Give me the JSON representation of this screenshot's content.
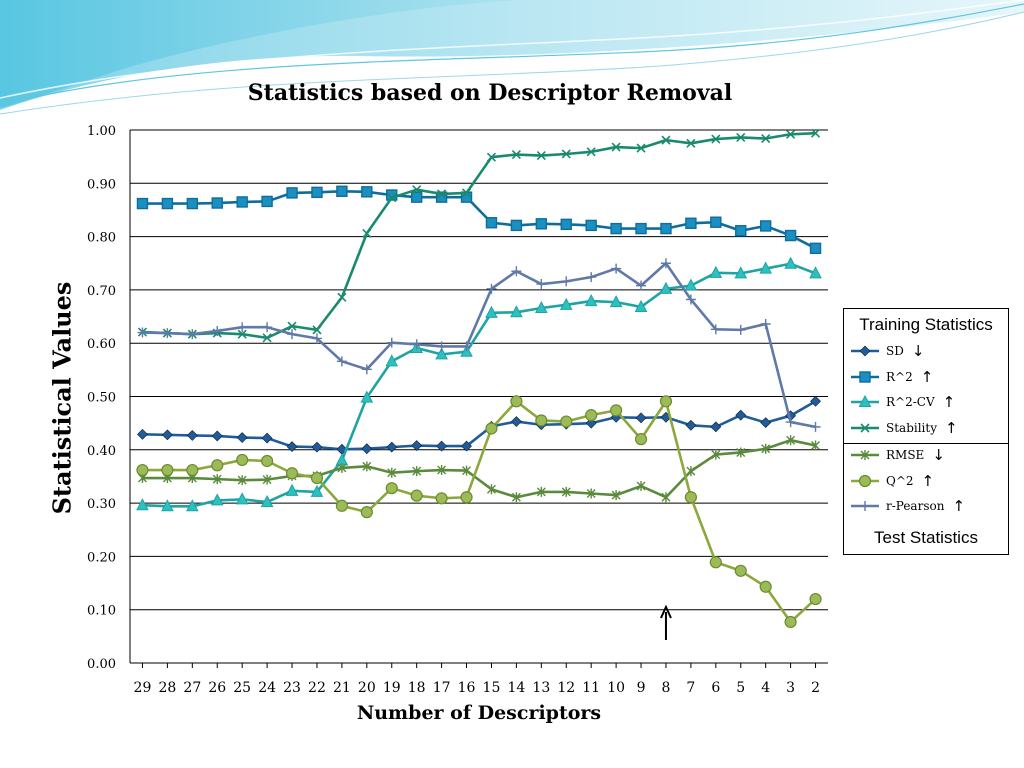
{
  "chart_data": {
    "type": "line",
    "title": "Statistics based on Descriptor Removal",
    "xlabel": "Number of Descriptors",
    "ylabel": "Statistical Values",
    "categories": [
      "29",
      "28",
      "27",
      "26",
      "25",
      "24",
      "23",
      "22",
      "21",
      "20",
      "19",
      "18",
      "17",
      "16",
      "15",
      "14",
      "13",
      "12",
      "11",
      "10",
      "9",
      "8",
      "7",
      "6",
      "5",
      "4",
      "3",
      "2"
    ],
    "ylim": [
      0,
      1
    ],
    "yticks": [
      "0.00",
      "0.10",
      "0.20",
      "0.30",
      "0.40",
      "0.50",
      "0.60",
      "0.70",
      "0.80",
      "0.90",
      "1.00"
    ],
    "grid": "horizontal",
    "legend_position": "right",
    "series": [
      {
        "name": "SD",
        "arrow": "↓",
        "color": "#1F5C99",
        "marker": "diamond",
        "values": [
          0.429,
          0.428,
          0.427,
          0.426,
          0.423,
          0.422,
          0.406,
          0.405,
          0.401,
          0.402,
          0.405,
          0.408,
          0.407,
          0.407,
          0.444,
          0.453,
          0.447,
          0.448,
          0.45,
          0.461,
          0.46,
          0.461,
          0.446,
          0.443,
          0.465,
          0.451,
          0.464,
          0.491
        ]
      },
      {
        "name": "R^2",
        "arrow": "↑",
        "color": "#0E6D9C",
        "marker": "square",
        "values": [
          0.862,
          0.862,
          0.862,
          0.863,
          0.865,
          0.866,
          0.882,
          0.883,
          0.885,
          0.884,
          0.878,
          0.874,
          0.874,
          0.874,
          0.826,
          0.821,
          0.824,
          0.823,
          0.821,
          0.815,
          0.815,
          0.815,
          0.825,
          0.827,
          0.811,
          0.82,
          0.802,
          0.778
        ]
      },
      {
        "name": "R^2-CV",
        "arrow": "↑",
        "color": "#1FA3A3",
        "marker": "triangle",
        "values": [
          0.296,
          0.294,
          0.294,
          0.305,
          0.307,
          0.302,
          0.323,
          0.321,
          0.38,
          0.498,
          0.566,
          0.591,
          0.579,
          0.584,
          0.657,
          0.658,
          0.666,
          0.672,
          0.679,
          0.677,
          0.668,
          0.702,
          0.708,
          0.732,
          0.731,
          0.74,
          0.749,
          0.731
        ]
      },
      {
        "name": "Stability",
        "arrow": "↑",
        "color": "#1A8A6E",
        "marker": "x",
        "values": [
          0.621,
          0.619,
          0.617,
          0.619,
          0.617,
          0.61,
          0.632,
          0.625,
          0.686,
          0.806,
          0.873,
          0.888,
          0.88,
          0.882,
          0.949,
          0.954,
          0.952,
          0.955,
          0.959,
          0.968,
          0.966,
          0.981,
          0.975,
          0.983,
          0.986,
          0.984,
          0.992,
          0.994
        ]
      },
      {
        "name": "RMSE",
        "arrow": "↓",
        "color": "#5A8A3C",
        "marker": "star",
        "values": [
          0.347,
          0.347,
          0.347,
          0.345,
          0.343,
          0.344,
          0.351,
          0.351,
          0.366,
          0.369,
          0.357,
          0.36,
          0.362,
          0.361,
          0.326,
          0.311,
          0.321,
          0.321,
          0.318,
          0.315,
          0.332,
          0.311,
          0.36,
          0.391,
          0.395,
          0.402,
          0.418,
          0.408
        ]
      },
      {
        "name": "Q^2",
        "arrow": "↑",
        "color": "#8BA83C",
        "marker": "circle",
        "values": [
          0.362,
          0.362,
          0.362,
          0.371,
          0.381,
          0.379,
          0.356,
          0.347,
          0.295,
          0.283,
          0.328,
          0.314,
          0.309,
          0.311,
          0.44,
          0.491,
          0.455,
          0.453,
          0.465,
          0.474,
          0.42,
          0.491,
          0.311,
          0.189,
          0.173,
          0.143,
          0.077,
          0.12
        ]
      },
      {
        "name": "r-Pearson",
        "arrow": "↑",
        "color": "#6079A8",
        "marker": "plus",
        "values": [
          0.62,
          0.619,
          0.617,
          0.623,
          0.63,
          0.63,
          0.617,
          0.609,
          0.566,
          0.551,
          0.601,
          0.598,
          0.594,
          0.594,
          0.702,
          0.735,
          0.711,
          0.716,
          0.724,
          0.74,
          0.708,
          0.75,
          0.682,
          0.626,
          0.625,
          0.636,
          0.452,
          0.443
        ]
      }
    ],
    "annotation": {
      "type": "arrow",
      "direction": "up",
      "category": "8"
    },
    "legend_groups": {
      "training": "Training Statistics",
      "test": "Test Statistics"
    }
  }
}
